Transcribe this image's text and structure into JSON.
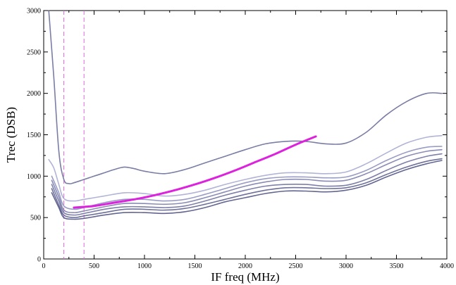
{
  "chart_data": {
    "type": "line",
    "xlabel": "IF freq (MHz)",
    "ylabel": "Trec (DSB)",
    "xlim": [
      0,
      4000
    ],
    "ylim": [
      0,
      3000
    ],
    "xticks": [
      0,
      500,
      1000,
      1500,
      2000,
      2500,
      3000,
      3500,
      4000
    ],
    "yticks": [
      0,
      500,
      1000,
      1500,
      2000,
      2500,
      3000
    ],
    "grid": false,
    "legend": "none",
    "series": [
      {
        "color": "#6b6f9a",
        "x": [
          50,
          100,
          150,
          200,
          250,
          300,
          400,
          500,
          600,
          700,
          800,
          900,
          1000,
          1200,
          1400,
          1600,
          1800,
          2000,
          2200,
          2400,
          2600,
          2800,
          3000,
          3200,
          3400,
          3600,
          3800,
          3950
        ],
        "y": [
          3000,
          2200,
          1300,
          960,
          910,
          920,
          960,
          1000,
          1040,
          1080,
          1110,
          1090,
          1060,
          1030,
          1080,
          1160,
          1240,
          1320,
          1390,
          1420,
          1420,
          1390,
          1400,
          1530,
          1740,
          1900,
          2000,
          2000
        ]
      },
      {
        "color": "#a9acd2",
        "x": [
          50,
          100,
          150,
          200,
          300,
          400,
          600,
          800,
          1000,
          1200,
          1400,
          1600,
          1800,
          2000,
          2200,
          2400,
          2600,
          2800,
          3000,
          3200,
          3400,
          3600,
          3800,
          3950
        ],
        "y": [
          1200,
          1100,
          900,
          730,
          700,
          720,
          760,
          800,
          790,
          760,
          780,
          830,
          900,
          960,
          1010,
          1040,
          1040,
          1030,
          1050,
          1150,
          1280,
          1400,
          1470,
          1490
        ]
      },
      {
        "color": "#8e91bf",
        "x": [
          80,
          150,
          200,
          300,
          400,
          600,
          800,
          1000,
          1200,
          1400,
          1600,
          1800,
          2000,
          2200,
          2400,
          2600,
          2800,
          3000,
          3200,
          3400,
          3600,
          3800,
          3950
        ],
        "y": [
          1000,
          800,
          640,
          600,
          620,
          680,
          720,
          720,
          700,
          720,
          780,
          850,
          920,
          970,
          990,
          990,
          980,
          990,
          1070,
          1190,
          1290,
          1350,
          1360
        ]
      },
      {
        "color": "#7d80ad",
        "x": [
          80,
          150,
          200,
          300,
          400,
          600,
          800,
          1000,
          1200,
          1400,
          1600,
          1800,
          2000,
          2200,
          2400,
          2600,
          2800,
          3000,
          3200,
          3400,
          3600,
          3800,
          3950
        ],
        "y": [
          950,
          750,
          590,
          560,
          580,
          630,
          670,
          670,
          660,
          680,
          740,
          810,
          880,
          930,
          960,
          960,
          940,
          950,
          1030,
          1140,
          1240,
          1300,
          1320
        ]
      },
      {
        "color": "#6f72a0",
        "x": [
          80,
          150,
          200,
          300,
          400,
          600,
          800,
          1000,
          1200,
          1400,
          1600,
          1800,
          2000,
          2200,
          2400,
          2600,
          2800,
          3000,
          3200,
          3400,
          3600,
          3800,
          3950
        ],
        "y": [
          900,
          700,
          560,
          530,
          550,
          600,
          630,
          630,
          620,
          640,
          700,
          770,
          830,
          880,
          900,
          900,
          880,
          890,
          960,
          1070,
          1170,
          1240,
          1270
        ]
      },
      {
        "color": "#5f6290",
        "x": [
          80,
          150,
          200,
          300,
          400,
          600,
          800,
          1000,
          1200,
          1400,
          1600,
          1800,
          2000,
          2200,
          2400,
          2600,
          2800,
          3000,
          3200,
          3400,
          3600,
          3800,
          3950
        ],
        "y": [
          850,
          650,
          530,
          500,
          520,
          560,
          600,
          600,
          590,
          610,
          660,
          720,
          780,
          830,
          860,
          860,
          850,
          860,
          920,
          1020,
          1110,
          1180,
          1210
        ]
      },
      {
        "color": "#525584",
        "x": [
          80,
          150,
          200,
          300,
          400,
          600,
          800,
          1000,
          1200,
          1400,
          1600,
          1800,
          2000,
          2200,
          2400,
          2600,
          2800,
          3000,
          3200,
          3400,
          3600,
          3800,
          3950
        ],
        "y": [
          800,
          620,
          500,
          480,
          490,
          530,
          560,
          560,
          550,
          570,
          620,
          690,
          740,
          790,
          820,
          820,
          810,
          830,
          890,
          990,
          1080,
          1150,
          1190
        ]
      },
      {
        "color": "#dd22dd",
        "x": [
          300,
          500,
          700,
          900,
          1100,
          1300,
          1500,
          1700,
          1900,
          2100,
          2300,
          2500,
          2700
        ],
        "y": [
          620,
          640,
          680,
          720,
          770,
          830,
          900,
          980,
          1070,
          1170,
          1270,
          1380,
          1480
        ]
      }
    ],
    "markers": [
      {
        "x": 200,
        "color": "#dd66dd",
        "style": "dashed"
      },
      {
        "x": 400,
        "color": "#dd66dd",
        "style": "dashed"
      }
    ]
  }
}
